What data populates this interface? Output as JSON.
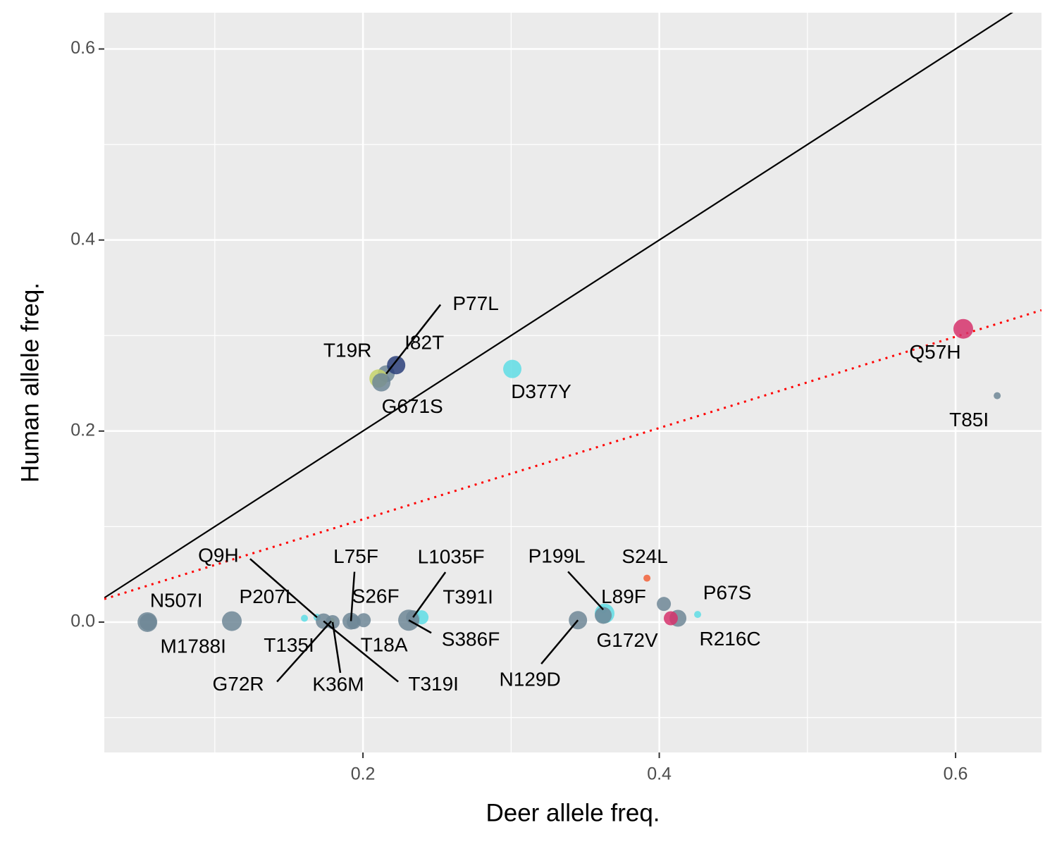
{
  "chart_data": {
    "type": "scatter",
    "xlabel": "Deer allele freq.",
    "ylabel": "Human allele freq.",
    "xlim": [
      0.0254,
      0.658
    ],
    "ylim": [
      -0.1365,
      0.638
    ],
    "xticks": [
      0.2,
      0.4,
      0.6
    ],
    "yticks": [
      {
        "value": 0,
        "label": "0.0"
      },
      0.2,
      0.4,
      0.6
    ],
    "x_minor_ticks": [
      0.1,
      0.3,
      0.5
    ],
    "y_minor_ticks": [
      -0.1,
      0.1,
      0.3,
      0.5
    ],
    "grid": true,
    "lines": [
      {
        "slope": 1,
        "intercept": 0,
        "color": "#000000",
        "style": "solid"
      },
      {
        "slope": 0.478,
        "intercept": 0.012,
        "color": "#ff0000",
        "style": "dotted"
      }
    ],
    "labels": [
      "N507I",
      "M1788I",
      "P207L",
      "T135I",
      "Q9H",
      "G72R",
      "K36M",
      "T319I",
      "L75F",
      "S26F",
      "T18A",
      "L1035F",
      "T391I",
      "S386F",
      "N129D",
      "P199L",
      "L89F",
      "G172V",
      "S24L",
      null,
      "P67S",
      "R216C",
      null,
      "Q57H",
      "T85I",
      "D377Y",
      "P77L",
      "I82T",
      "T19R",
      "G671S"
    ],
    "x": [
      0.0545,
      0.055,
      0.1115,
      0.1605,
      0.169,
      0.1786,
      0.1795,
      0.1734,
      0.1919,
      0.2005,
      0.1938,
      0.2338,
      0.2395,
      0.2309,
      0.3451,
      0.3622,
      0.3631,
      0.3622,
      0.3917,
      0.4031,
      0.4259,
      0.4126,
      0.4078,
      0.6052,
      0.6281,
      0.3008,
      0.2157,
      0.2224,
      0.2105,
      0.2124
    ],
    "values": [
      0,
      0,
      0.001,
      0.004,
      0.005,
      0.001,
      0,
      0.001,
      0.001,
      0.002,
      0,
      0.005,
      0.005,
      0.002,
      0.002,
      0.013,
      0.009,
      0.007,
      0.046,
      0.019,
      0.008,
      0.004,
      0.004,
      0.307,
      0.237,
      0.265,
      0.26,
      0.269,
      0.255,
      0.251
    ],
    "sizes": [
      14,
      12,
      14,
      5,
      5,
      5,
      10,
      11,
      12,
      10,
      10,
      10,
      10,
      15,
      13,
      5,
      14,
      12,
      5,
      10,
      5,
      12,
      10,
      14,
      5,
      13,
      12,
      13,
      13,
      13
    ],
    "colors": [
      "#6f8797",
      "#6f8797",
      "#6f8797",
      "#5fdde5",
      "#5fdde5",
      "#c5d46b",
      "#6f8797",
      "#6f8797",
      "#6f8797",
      "#6f8797",
      "#6f8797",
      "#6f8797",
      "#5fdde5",
      "#6f8797",
      "#6f8797",
      "#5fdde5",
      "#5fdde5",
      "#6f8797",
      "#f2613a",
      "#6f8797",
      "#5fdde5",
      "#6f8797",
      "#d6336c",
      "#d6336c",
      "#6f8797",
      "#5fdde5",
      "#6f8797",
      "#2c3f7a",
      "#c5d46b",
      "#6f8797"
    ]
  }
}
